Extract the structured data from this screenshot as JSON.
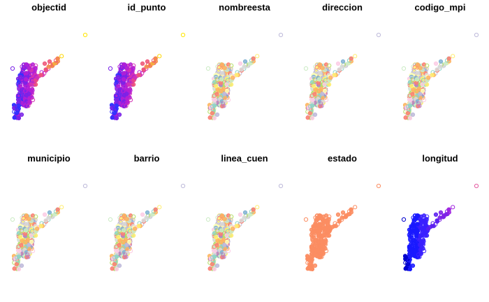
{
  "chart_data": [
    {
      "type": "scatter",
      "title": "objectid",
      "palette": [
        "#0000cd",
        "#3030ff",
        "#7a22e8",
        "#b31fd6",
        "#d433b5",
        "#ee5577",
        "#f58d4a",
        "#f5b23c",
        "#ffd700",
        "#ffe600"
      ]
    },
    {
      "type": "scatter",
      "title": "id_punto",
      "palette": [
        "#0000cd",
        "#3030ff",
        "#7a22e8",
        "#b31fd6",
        "#d433b5",
        "#ee5577",
        "#f58d4a",
        "#f5b23c",
        "#ffd700",
        "#ffe600"
      ]
    },
    {
      "type": "scatter",
      "title": "nombreesta",
      "palette": [
        "#8dd3c7",
        "#ffffb3",
        "#bebada",
        "#fb8072",
        "#80b1d3",
        "#fdb462",
        "#b3de69",
        "#fccde5",
        "#d9d9d9",
        "#bc80bd",
        "#ccebc5",
        "#ffed6f"
      ]
    },
    {
      "type": "scatter",
      "title": "direccion",
      "palette": [
        "#8dd3c7",
        "#ffffb3",
        "#bebada",
        "#fb8072",
        "#80b1d3",
        "#fdb462",
        "#b3de69",
        "#fccde5",
        "#d9d9d9",
        "#bc80bd",
        "#ccebc5",
        "#ffed6f"
      ]
    },
    {
      "type": "scatter",
      "title": "codigo_mpi",
      "palette": [
        "#8dd3c7",
        "#ffffb3",
        "#bebada",
        "#fb8072",
        "#80b1d3",
        "#fdb462",
        "#b3de69",
        "#fccde5",
        "#d9d9d9",
        "#bc80bd",
        "#ccebc5",
        "#ffed6f"
      ]
    },
    {
      "type": "scatter",
      "title": "municipio",
      "palette": [
        "#8dd3c7",
        "#ffffb3",
        "#bebada",
        "#fb8072",
        "#80b1d3",
        "#fdb462",
        "#b3de69",
        "#fccde5",
        "#d9d9d9",
        "#bc80bd",
        "#ccebc5",
        "#ffed6f"
      ]
    },
    {
      "type": "scatter",
      "title": "barrio",
      "palette": [
        "#8dd3c7",
        "#ffffb3",
        "#bebada",
        "#fb8072",
        "#80b1d3",
        "#fdb462",
        "#b3de69",
        "#fccde5",
        "#d9d9d9",
        "#bc80bd",
        "#ccebc5",
        "#ffed6f"
      ]
    },
    {
      "type": "scatter",
      "title": "linea_cuen",
      "palette": [
        "#8dd3c7",
        "#ffffb3",
        "#bebada",
        "#fb8072",
        "#80b1d3",
        "#fdb462",
        "#b3de69",
        "#fccde5",
        "#d9d9d9",
        "#bc80bd",
        "#ccebc5",
        "#ffed6f"
      ]
    },
    {
      "type": "scatter",
      "title": "estado",
      "palette": [
        "#fb8d62"
      ]
    },
    {
      "type": "scatter",
      "title": "longitud",
      "palette": [
        "#0000cd",
        "#1a1aff",
        "#3a20ff",
        "#5b1ef0",
        "#7d22e6",
        "#a024e0",
        "#c640c8",
        "#e45aa0"
      ]
    }
  ]
}
